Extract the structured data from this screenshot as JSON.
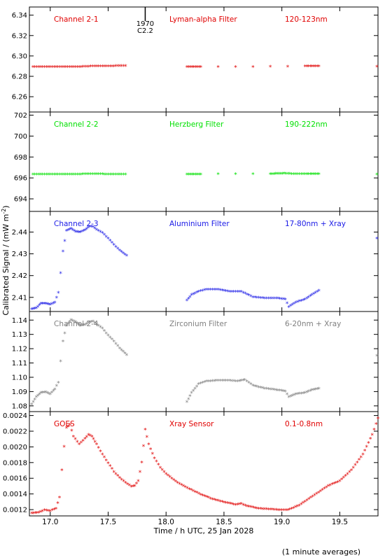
{
  "chart_data": {
    "type": "scatter",
    "x_label": "Time / h UTC, 25 Jan 2028",
    "y_label": "Calibrated Signal / (mW m",
    "y_label_sup": "-2",
    "y_label_end": ")",
    "footnote": "(1 minute averages)",
    "x_range": [
      16.82,
      19.83
    ],
    "x_ticks": [
      17.0,
      17.5,
      18.0,
      18.5,
      19.0,
      19.5
    ],
    "x_tick_labels": [
      "17.0",
      "17.5",
      "18.0",
      "18.5",
      "19.0",
      "19.5"
    ],
    "event_marker": {
      "x": 17.82,
      "label_top": "1970",
      "label_bottom": "C2.2"
    },
    "panels": [
      {
        "name": "Channel 2-1",
        "filter": "Lyman-alpha Filter",
        "band": "120-123nm",
        "color": "#e00000",
        "y_range": [
          6.245,
          6.348
        ],
        "y_ticks": [
          6.26,
          6.28,
          6.3,
          6.32,
          6.34
        ],
        "y_tick_labels": [
          "6.26",
          "6.28",
          "6.30",
          "6.32",
          "6.34"
        ],
        "points": [
          [
            16.85,
            6.289
          ],
          [
            16.95,
            6.289
          ],
          [
            17.05,
            6.289
          ],
          [
            17.15,
            6.289
          ],
          [
            17.25,
            6.289
          ],
          [
            17.35,
            6.2895
          ],
          [
            17.45,
            6.2897
          ],
          [
            17.55,
            6.2898
          ],
          [
            17.65,
            6.2899
          ],
          [
            18.18,
            6.2888
          ],
          [
            18.3,
            6.2889
          ],
          [
            18.45,
            6.289
          ],
          [
            18.6,
            6.289
          ],
          [
            18.75,
            6.2891
          ],
          [
            18.9,
            6.2892
          ],
          [
            19.05,
            6.2893
          ],
          [
            19.2,
            6.2895
          ],
          [
            19.32,
            6.2897
          ],
          [
            19.82,
            6.2893
          ]
        ]
      },
      {
        "name": "Channel 2-2",
        "filter": "Herzberg Filter",
        "band": "190-222nm",
        "color": "#00e000",
        "y_range": [
          692.8,
          702.3
        ],
        "y_ticks": [
          694,
          696,
          698,
          700,
          702
        ],
        "y_tick_labels": [
          "694",
          "696",
          "698",
          "700",
          "702"
        ],
        "points": [
          [
            16.85,
            696.3
          ],
          [
            16.95,
            696.3
          ],
          [
            17.05,
            696.3
          ],
          [
            17.15,
            696.3
          ],
          [
            17.25,
            696.32
          ],
          [
            17.35,
            696.35
          ],
          [
            17.45,
            696.33
          ],
          [
            17.55,
            696.32
          ],
          [
            17.65,
            696.32
          ],
          [
            18.18,
            696.32
          ],
          [
            18.3,
            696.32
          ],
          [
            18.45,
            696.33
          ],
          [
            18.6,
            696.33
          ],
          [
            18.75,
            696.33
          ],
          [
            18.9,
            696.35
          ],
          [
            19.02,
            696.4
          ],
          [
            19.1,
            696.34
          ],
          [
            19.2,
            696.33
          ],
          [
            19.32,
            696.33
          ],
          [
            19.82,
            696.3
          ]
        ]
      },
      {
        "name": "Channel 2-3",
        "filter": "Aluminium Filter",
        "band": "17-80nm + Xray",
        "color": "#1a1ae6",
        "y_range": [
          2.4035,
          2.4495
        ],
        "y_ticks": [
          2.41,
          2.42,
          2.43,
          2.44
        ],
        "y_tick_labels": [
          "2.41",
          "2.42",
          "2.43",
          "2.44"
        ],
        "points": [
          [
            16.84,
            2.4045
          ],
          [
            16.88,
            2.405
          ],
          [
            16.92,
            2.407
          ],
          [
            16.96,
            2.407
          ],
          [
            17.0,
            2.4065
          ],
          [
            17.04,
            2.4075
          ],
          [
            17.07,
            2.412
          ],
          [
            17.09,
            2.421
          ],
          [
            17.11,
            2.431
          ],
          [
            17.14,
            2.4405
          ],
          [
            17.18,
            2.4415
          ],
          [
            17.22,
            2.44
          ],
          [
            17.26,
            2.4398
          ],
          [
            17.3,
            2.4408
          ],
          [
            17.34,
            2.4425
          ],
          [
            17.37,
            2.4423
          ],
          [
            17.4,
            2.441
          ],
          [
            17.45,
            2.4395
          ],
          [
            17.5,
            2.437
          ],
          [
            17.55,
            2.434
          ],
          [
            17.6,
            2.4315
          ],
          [
            17.66,
            2.429
          ],
          [
            18.18,
            2.4085
          ],
          [
            18.22,
            2.411
          ],
          [
            18.28,
            2.4125
          ],
          [
            18.35,
            2.4135
          ],
          [
            18.45,
            2.4135
          ],
          [
            18.55,
            2.4125
          ],
          [
            18.65,
            2.4125
          ],
          [
            18.75,
            2.41
          ],
          [
            18.85,
            2.4095
          ],
          [
            18.95,
            2.4095
          ],
          [
            19.03,
            2.409
          ],
          [
            19.06,
            2.4055
          ],
          [
            19.12,
            2.4075
          ],
          [
            19.2,
            2.409
          ],
          [
            19.26,
            2.411
          ],
          [
            19.32,
            2.413
          ],
          [
            19.82,
            2.437
          ]
        ]
      },
      {
        "name": "Channel 2-4",
        "filter": "Zirconium Filter",
        "band": "6-20nm + Xray",
        "color": "#808080",
        "y_range": [
          1.076,
          1.146
        ],
        "y_ticks": [
          1.08,
          1.09,
          1.1,
          1.11,
          1.12,
          1.13,
          1.14
        ],
        "y_tick_labels": [
          "1.08",
          "1.09",
          "1.10",
          "1.11",
          "1.12",
          "1.13",
          "1.14"
        ],
        "points": [
          [
            16.84,
            1.081
          ],
          [
            16.88,
            1.086
          ],
          [
            16.92,
            1.089
          ],
          [
            16.96,
            1.0895
          ],
          [
            17.0,
            1.088
          ],
          [
            17.04,
            1.0915
          ],
          [
            17.07,
            1.096
          ],
          [
            17.09,
            1.111
          ],
          [
            17.11,
            1.125
          ],
          [
            17.14,
            1.136
          ],
          [
            17.18,
            1.14
          ],
          [
            17.22,
            1.1385
          ],
          [
            17.26,
            1.136
          ],
          [
            17.3,
            1.1365
          ],
          [
            17.34,
            1.1385
          ],
          [
            17.37,
            1.139
          ],
          [
            17.4,
            1.137
          ],
          [
            17.45,
            1.134
          ],
          [
            17.5,
            1.129
          ],
          [
            17.55,
            1.125
          ],
          [
            17.6,
            1.12
          ],
          [
            17.66,
            1.1155
          ],
          [
            18.18,
            1.0825
          ],
          [
            18.22,
            1.089
          ],
          [
            18.28,
            1.095
          ],
          [
            18.35,
            1.097
          ],
          [
            18.45,
            1.0975
          ],
          [
            18.55,
            1.0975
          ],
          [
            18.62,
            1.097
          ],
          [
            18.68,
            1.098
          ],
          [
            18.75,
            1.094
          ],
          [
            18.85,
            1.092
          ],
          [
            18.95,
            1.091
          ],
          [
            19.03,
            1.09
          ],
          [
            19.06,
            1.086
          ],
          [
            19.12,
            1.088
          ],
          [
            19.2,
            1.089
          ],
          [
            19.26,
            1.091
          ],
          [
            19.32,
            1.092
          ],
          [
            19.82,
            1.115
          ]
        ]
      },
      {
        "name": "GOES",
        "filter": "Xray Sensor",
        "band": "0.1-0.8nm",
        "color": "#e00000",
        "y_range": [
          0.00112,
          0.00245
        ],
        "y_ticks": [
          0.0012,
          0.0014,
          0.0016,
          0.0018,
          0.002,
          0.0022,
          0.0024
        ],
        "y_tick_labels": [
          "0.0012",
          "0.0014",
          "0.0016",
          "0.0018",
          "0.0020",
          "0.0022",
          "0.0024"
        ],
        "points": [
          [
            16.84,
            0.00115
          ],
          [
            16.9,
            0.00116
          ],
          [
            16.95,
            0.00119
          ],
          [
            17.0,
            0.00118
          ],
          [
            17.05,
            0.00121
          ],
          [
            17.08,
            0.00135
          ],
          [
            17.1,
            0.0017
          ],
          [
            17.12,
            0.002
          ],
          [
            17.14,
            0.00224
          ],
          [
            17.17,
            0.00228
          ],
          [
            17.2,
            0.00213
          ],
          [
            17.25,
            0.00203
          ],
          [
            17.3,
            0.0021
          ],
          [
            17.33,
            0.00215
          ],
          [
            17.36,
            0.00213
          ],
          [
            17.4,
            0.00203
          ],
          [
            17.45,
            0.0019
          ],
          [
            17.5,
            0.00179
          ],
          [
            17.55,
            0.00168
          ],
          [
            17.6,
            0.0016
          ],
          [
            17.65,
            0.00154
          ],
          [
            17.7,
            0.00149
          ],
          [
            17.73,
            0.0015
          ],
          [
            17.76,
            0.00156
          ],
          [
            17.79,
            0.0018
          ],
          [
            17.82,
            0.00222
          ],
          [
            17.85,
            0.00203
          ],
          [
            17.9,
            0.00185
          ],
          [
            17.95,
            0.00173
          ],
          [
            18.0,
            0.00165
          ],
          [
            18.1,
            0.00154
          ],
          [
            18.2,
            0.00146
          ],
          [
            18.3,
            0.00139
          ],
          [
            18.4,
            0.00133
          ],
          [
            18.5,
            0.00129
          ],
          [
            18.6,
            0.00126
          ],
          [
            18.65,
            0.00127
          ],
          [
            18.7,
            0.00124
          ],
          [
            18.8,
            0.00121
          ],
          [
            18.9,
            0.0012
          ],
          [
            19.0,
            0.00119
          ],
          [
            19.05,
            0.00119
          ],
          [
            19.1,
            0.00122
          ],
          [
            19.15,
            0.00125
          ],
          [
            19.2,
            0.0013
          ],
          [
            19.3,
            0.0014
          ],
          [
            19.4,
            0.0015
          ],
          [
            19.5,
            0.00156
          ],
          [
            19.6,
            0.0017
          ],
          [
            19.7,
            0.0019
          ],
          [
            19.78,
            0.00215
          ],
          [
            19.83,
            0.00236
          ]
        ]
      }
    ]
  }
}
